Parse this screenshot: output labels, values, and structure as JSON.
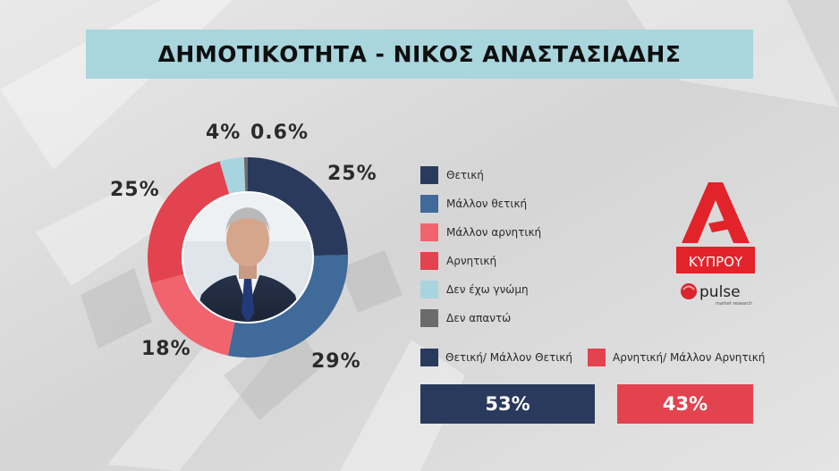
{
  "title": "ΔΗΜΟΤΙΚΟΤΗΤΑ - ΝΙΚΟΣ ΑΝΑΣΤΑΣΙΑΔΗΣ",
  "chart_data": {
    "type": "pie",
    "title": "ΔΗΜΟΤΙΚΟΤΗΤΑ - ΝΙΚΟΣ ΑΝΑΣΤΑΣΙΑΔΗΣ",
    "categories": [
      "Θετική",
      "Μάλλον θετική",
      "Μάλλον αρνητική",
      "Αρνητική",
      "Δεν έχω γνώμη",
      "Δεν απαντώ"
    ],
    "values": [
      25,
      29,
      18,
      25,
      4,
      0.6
    ],
    "value_labels": [
      "25%",
      "29%",
      "18%",
      "25%",
      "4%",
      "0.6%"
    ],
    "colors": [
      "#2a3a5c",
      "#3f6a9a",
      "#f1646e",
      "#e2434f",
      "#a8d4df",
      "#6b6b6b"
    ],
    "legend_position": "right"
  },
  "summary": {
    "positive_label": "Θετική/ Μάλλον Θετική",
    "negative_label": "Αρνητική/ Μάλλον Αρνητική",
    "positive_value": "53%",
    "negative_value": "43%",
    "positive_color": "#2a3a5c",
    "negative_color": "#e2434f"
  },
  "logo": {
    "brand_text": "ΚΥΠΡΟΥ",
    "brand_color": "#e3232a",
    "pulse_text": "pulse",
    "pulse_subtext": "market research",
    "icons": [
      "alpha-logo-icon",
      "pulse-logo-icon"
    ]
  },
  "photo": {
    "icon": "portrait-photo-icon"
  }
}
